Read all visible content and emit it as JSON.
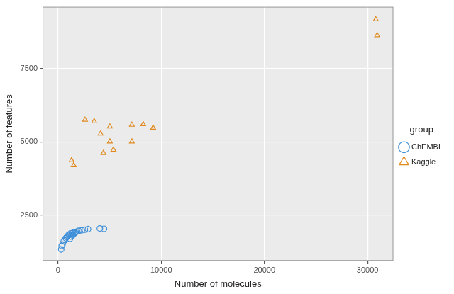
{
  "chart_data": {
    "type": "scatter",
    "x_label": "Number of molecules",
    "y_label": "Number of features",
    "xlim": [
      -1500,
      32500
    ],
    "xticks": [
      0,
      10000,
      20000,
      30000
    ],
    "ylim": [
      950,
      9600
    ],
    "yticks": [
      2500,
      5000,
      7500
    ],
    "grid": true,
    "legend": "right",
    "legend_title": "group",
    "series": [
      {
        "name": "ChEMBL",
        "color": "#3d8fd9",
        "marker": "circle",
        "x": [
          300,
          350,
          420,
          550,
          650,
          750,
          850,
          950,
          1050,
          1150,
          1200,
          1250,
          1350,
          1400,
          1450,
          1550,
          1650,
          1700,
          1850,
          2000,
          2300,
          2600,
          2900,
          4050,
          4450
        ],
        "values": [
          1340,
          1460,
          1500,
          1620,
          1660,
          1720,
          1760,
          1800,
          1840,
          1700,
          1880,
          1780,
          1900,
          1820,
          1930,
          1880,
          1900,
          1930,
          1950,
          1970,
          1990,
          2010,
          2030,
          2050,
          2040
        ]
      },
      {
        "name": "Kaggle",
        "color": "#e08a1e",
        "marker": "triangle",
        "x": [
          1300,
          1510,
          2610,
          3500,
          4120,
          4400,
          5020,
          5020,
          5360,
          7150,
          7150,
          8250,
          9210,
          30800,
          30930
        ],
        "values": [
          4370,
          4200,
          5750,
          5700,
          5280,
          4620,
          5520,
          5010,
          4730,
          5580,
          5010,
          5600,
          5480,
          9170,
          8630
        ]
      }
    ]
  }
}
